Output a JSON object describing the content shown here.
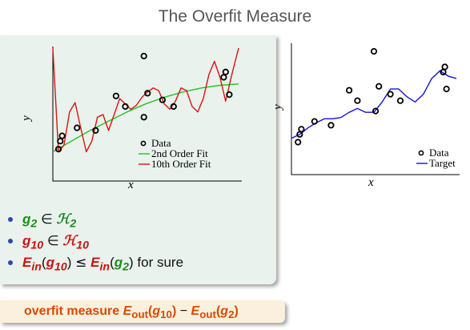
{
  "title": "The Overfit Measure",
  "left_plot": {
    "xlabel": "x",
    "ylabel": "y",
    "legend": [
      "Data",
      "2nd Order Fit",
      "10th Order Fit"
    ],
    "colors": {
      "data": "#000000",
      "fit2": "#22c422",
      "fit10": "#dd1111"
    }
  },
  "right_plot": {
    "xlabel": "x",
    "ylabel": "y",
    "legend": [
      "Data",
      "Target"
    ],
    "colors": {
      "data": "#000000",
      "target": "#1111dd"
    }
  },
  "bullets": [
    {
      "lhs": "g",
      "lhs_sub": "2",
      "rel": "∈",
      "rhs": "ℋ",
      "rhs_sub": "2"
    },
    {
      "lhs": "g",
      "lhs_sub": "10",
      "rel": "∈",
      "rhs": "ℋ",
      "rhs_sub": "10"
    },
    {
      "a_fn": "E",
      "a_sub": "in",
      "a_arg": "g",
      "a_arg_sub": "10",
      "rel": "≤",
      "b_fn": "E",
      "b_sub": "in",
      "b_arg": "g",
      "b_arg_sub": "2",
      "tail": "for sure"
    }
  ],
  "overfit": {
    "label": "overfit measure",
    "fn": "E",
    "fn_sub": "out",
    "arg1": "g",
    "arg1_sub": "10",
    "minus": "−",
    "arg2": "g",
    "arg2_sub": "2"
  },
  "chart_data": [
    {
      "type": "scatter",
      "title": "",
      "xlabel": "x",
      "ylabel": "y",
      "xlim": [
        0,
        1
      ],
      "ylim": [
        0,
        1
      ],
      "series": [
        {
          "name": "Data",
          "kind": "points",
          "x": [
            0.03,
            0.04,
            0.05,
            0.13,
            0.23,
            0.34,
            0.39,
            0.49,
            0.51,
            0.49,
            0.59,
            0.65,
            0.92,
            0.93,
            0.95
          ],
          "y": [
            0.24,
            0.3,
            0.34,
            0.4,
            0.38,
            0.64,
            0.56,
            0.94,
            0.66,
            0.48,
            0.61,
            0.56,
            0.78,
            0.82,
            0.65
          ]
        },
        {
          "name": "2nd Order Fit",
          "kind": "line",
          "x": [
            0.0,
            0.1,
            0.2,
            0.3,
            0.4,
            0.5,
            0.6,
            0.7,
            0.8,
            0.9,
            1.0
          ],
          "y": [
            0.22,
            0.3,
            0.38,
            0.45,
            0.52,
            0.58,
            0.63,
            0.67,
            0.7,
            0.72,
            0.73
          ]
        },
        {
          "name": "10th Order Fit",
          "kind": "line",
          "x": [
            0.0,
            0.03,
            0.06,
            0.09,
            0.12,
            0.15,
            0.18,
            0.21,
            0.24,
            0.27,
            0.3,
            0.33,
            0.36,
            0.39,
            0.42,
            0.45,
            0.48,
            0.51,
            0.54,
            0.57,
            0.6,
            0.63,
            0.66,
            0.69,
            0.72,
            0.75,
            0.78,
            0.81,
            0.84,
            0.87,
            0.9,
            0.93,
            0.96,
            1.0
          ],
          "y": [
            1.0,
            0.22,
            0.27,
            0.52,
            0.59,
            0.4,
            0.22,
            0.3,
            0.48,
            0.5,
            0.38,
            0.5,
            0.62,
            0.58,
            0.54,
            0.57,
            0.63,
            0.67,
            0.7,
            0.68,
            0.58,
            0.54,
            0.6,
            0.7,
            0.68,
            0.56,
            0.52,
            0.62,
            0.8,
            0.9,
            0.78,
            0.6,
            0.78,
            1.0
          ]
        }
      ]
    },
    {
      "type": "scatter",
      "title": "",
      "xlabel": "x",
      "ylabel": "y",
      "xlim": [
        0,
        1
      ],
      "ylim": [
        0,
        1
      ],
      "series": [
        {
          "name": "Data",
          "kind": "points",
          "x": [
            0.04,
            0.05,
            0.06,
            0.14,
            0.24,
            0.35,
            0.4,
            0.5,
            0.51,
            0.53,
            0.6,
            0.66,
            0.92,
            0.93,
            0.94
          ],
          "y": [
            0.25,
            0.31,
            0.35,
            0.41,
            0.38,
            0.65,
            0.57,
            0.95,
            0.49,
            0.68,
            0.62,
            0.57,
            0.79,
            0.83,
            0.66
          ]
        },
        {
          "name": "Target",
          "kind": "line",
          "x": [
            0.0,
            0.05,
            0.1,
            0.15,
            0.2,
            0.25,
            0.3,
            0.35,
            0.4,
            0.45,
            0.5,
            0.55,
            0.6,
            0.65,
            0.7,
            0.75,
            0.8,
            0.85,
            0.9,
            0.95,
            1.0
          ],
          "y": [
            0.28,
            0.31,
            0.36,
            0.4,
            0.43,
            0.43,
            0.44,
            0.48,
            0.51,
            0.48,
            0.48,
            0.56,
            0.66,
            0.66,
            0.6,
            0.56,
            0.62,
            0.74,
            0.8,
            0.76,
            0.74
          ]
        }
      ]
    }
  ]
}
